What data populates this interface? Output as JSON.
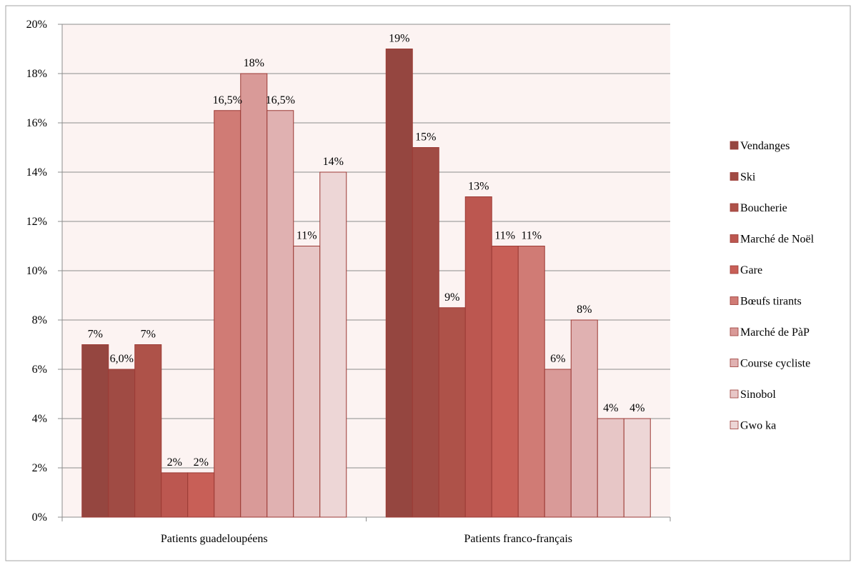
{
  "chart_data": {
    "type": "bar",
    "categories": [
      "Patients guadeloupéens",
      "Patients franco-français"
    ],
    "series": [
      {
        "name": "Vendanges",
        "color": "#954640",
        "values": [
          7,
          19
        ],
        "labels": [
          "7%",
          "19%"
        ]
      },
      {
        "name": "Ski",
        "color": "#A04B44",
        "values": [
          6,
          15
        ],
        "labels": [
          "6,0%",
          "15%"
        ]
      },
      {
        "name": "Boucherie",
        "color": "#AE5249",
        "values": [
          7,
          8.5
        ],
        "labels": [
          "7%",
          "9%"
        ]
      },
      {
        "name": "Marché de Noël",
        "color": "#BC5750",
        "values": [
          1.8,
          13
        ],
        "labels": [
          "2%",
          "13%"
        ]
      },
      {
        "name": "Gare",
        "color": "#C85F57",
        "values": [
          1.8,
          11
        ],
        "labels": [
          "2%",
          "11%"
        ]
      },
      {
        "name": "Bœufs tirants",
        "color": "#D07B75",
        "values": [
          16.5,
          11
        ],
        "labels": [
          "16,5%",
          "11%"
        ]
      },
      {
        "name": "Marché de PàP",
        "color": "#D99A98",
        "values": [
          18,
          6
        ],
        "labels": [
          "18%",
          "6%"
        ]
      },
      {
        "name": "Course cycliste",
        "color": "#E0B1B1",
        "values": [
          16.5,
          8
        ],
        "labels": [
          "16,5%",
          "8%"
        ]
      },
      {
        "name": "Sinobol",
        "color": "#E7C6C6",
        "values": [
          11,
          4
        ],
        "labels": [
          "11%",
          "4%"
        ]
      },
      {
        "name": "Gwo ka",
        "color": "#EDD6D6",
        "values": [
          14,
          4
        ],
        "labels": [
          "14%",
          "4%"
        ]
      }
    ],
    "ylim": [
      0,
      20
    ],
    "yticks": [
      0,
      2,
      4,
      6,
      8,
      10,
      12,
      14,
      16,
      18,
      20
    ],
    "ytick_labels": [
      "0%",
      "2%",
      "4%",
      "6%",
      "8%",
      "10%",
      "12%",
      "14%",
      "16%",
      "18%",
      "20%"
    ],
    "grid": true,
    "legend_position": "right",
    "plot_background": "#FCF3F2",
    "bar_outline": "#9B3A35"
  }
}
